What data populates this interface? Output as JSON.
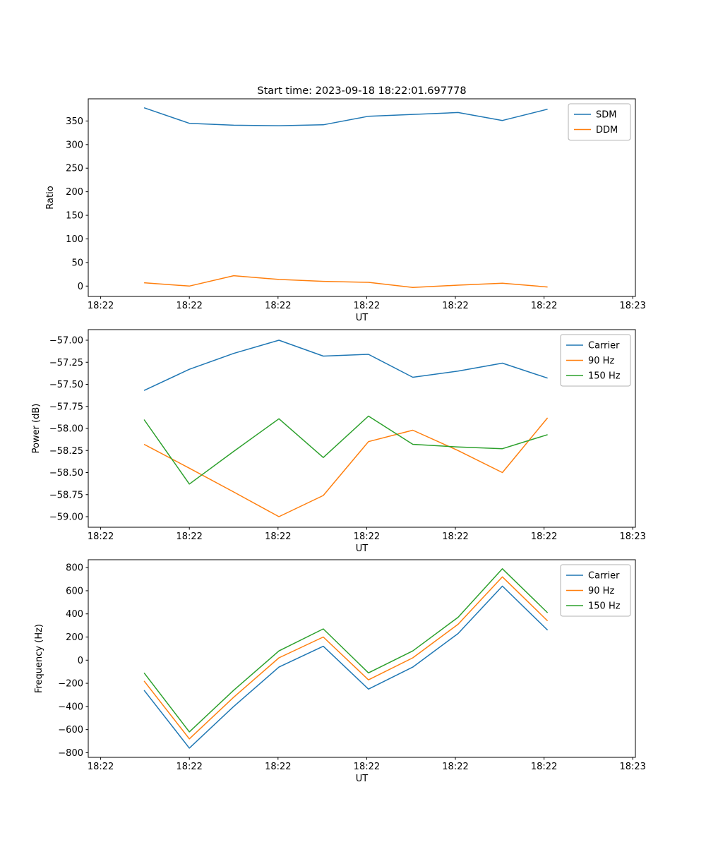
{
  "figure": {
    "title": "Start time: 2023-09-18 18:22:01.697778",
    "background": "#ffffff"
  },
  "colors": {
    "series_blue": "#1f77b4",
    "series_orange": "#ff7f0e",
    "series_green": "#2ca02c",
    "axes_edge": "#000000",
    "legend_edge": "#b0b0b0"
  },
  "chart_data": [
    {
      "type": "line",
      "title": "Start time: 2023-09-18 18:22:01.697778",
      "xlabel": "UT",
      "ylabel": "Ratio",
      "xlim": [
        -1.4,
        60.3
      ],
      "ylim": [
        -22,
        397
      ],
      "xticks": [
        0,
        10,
        20,
        30,
        40,
        50,
        60
      ],
      "xtick_labels": [
        "18:22",
        "18:22",
        "18:22",
        "18:22",
        "18:22",
        "18:22",
        "18:23"
      ],
      "yticks": [
        0,
        50,
        100,
        150,
        200,
        250,
        300,
        350
      ],
      "ytick_decimals": 0,
      "grid": false,
      "legend_position": "upper right",
      "x": [
        4.9,
        10.0,
        15.0,
        20.1,
        25.1,
        30.2,
        35.2,
        40.3,
        45.3,
        50.4
      ],
      "series": [
        {
          "name": "SDM",
          "color": "#1f77b4",
          "values": [
            378,
            345,
            341,
            340,
            342,
            360,
            364,
            368,
            351,
            375
          ]
        },
        {
          "name": "DDM",
          "color": "#ff7f0e",
          "values": [
            7,
            0,
            22,
            14,
            10,
            8,
            -3,
            2,
            6,
            -2
          ]
        }
      ]
    },
    {
      "type": "line",
      "title": "",
      "xlabel": "UT",
      "ylabel": "Power (dB)",
      "xlim": [
        -1.4,
        60.3
      ],
      "ylim": [
        -59.12,
        -56.88
      ],
      "xticks": [
        0,
        10,
        20,
        30,
        40,
        50,
        60
      ],
      "xtick_labels": [
        "18:22",
        "18:22",
        "18:22",
        "18:22",
        "18:22",
        "18:22",
        "18:23"
      ],
      "yticks": [
        -57.0,
        -57.25,
        -57.5,
        -57.75,
        -58.0,
        -58.25,
        -58.5,
        -58.75,
        -59.0
      ],
      "ytick_decimals": 2,
      "grid": false,
      "legend_position": "upper right",
      "x": [
        4.9,
        10.0,
        15.0,
        20.1,
        25.1,
        30.2,
        35.2,
        40.3,
        45.3,
        50.4
      ],
      "series": [
        {
          "name": "Carrier",
          "color": "#1f77b4",
          "values": [
            -57.57,
            -57.33,
            -57.15,
            -57.0,
            -57.18,
            -57.16,
            -57.42,
            -57.35,
            -57.26,
            -57.43
          ]
        },
        {
          "name": "90 Hz",
          "color": "#ff7f0e",
          "values": [
            -58.18,
            -58.45,
            -58.72,
            -59.0,
            -58.76,
            -58.15,
            -58.02,
            -58.25,
            -58.5,
            -57.88
          ]
        },
        {
          "name": "150 Hz",
          "color": "#2ca02c",
          "values": [
            -57.9,
            -58.63,
            -58.26,
            -57.89,
            -58.33,
            -57.86,
            -58.18,
            -58.21,
            -58.23,
            -58.07
          ]
        }
      ]
    },
    {
      "type": "line",
      "title": "",
      "xlabel": "UT",
      "ylabel": "Frequency (Hz)",
      "xlim": [
        -1.4,
        60.3
      ],
      "ylim": [
        -840,
        868
      ],
      "xticks": [
        0,
        10,
        20,
        30,
        40,
        50,
        60
      ],
      "xtick_labels": [
        "18:22",
        "18:22",
        "18:22",
        "18:22",
        "18:22",
        "18:22",
        "18:23"
      ],
      "yticks": [
        -800,
        -600,
        -400,
        -200,
        0,
        200,
        400,
        600,
        800
      ],
      "ytick_decimals": 0,
      "grid": false,
      "legend_position": "upper right",
      "x": [
        4.9,
        10.0,
        15.0,
        20.1,
        25.1,
        30.2,
        35.2,
        40.3,
        45.3,
        50.4
      ],
      "series": [
        {
          "name": "Carrier",
          "color": "#1f77b4",
          "values": [
            -260,
            -760,
            -400,
            -60,
            120,
            -250,
            -60,
            230,
            640,
            260
          ]
        },
        {
          "name": "90 Hz",
          "color": "#ff7f0e",
          "values": [
            -180,
            -680,
            -320,
            20,
            200,
            -170,
            20,
            310,
            720,
            340
          ]
        },
        {
          "name": "150 Hz",
          "color": "#2ca02c",
          "values": [
            -110,
            -620,
            -260,
            80,
            270,
            -110,
            80,
            370,
            790,
            410
          ]
        }
      ]
    }
  ]
}
